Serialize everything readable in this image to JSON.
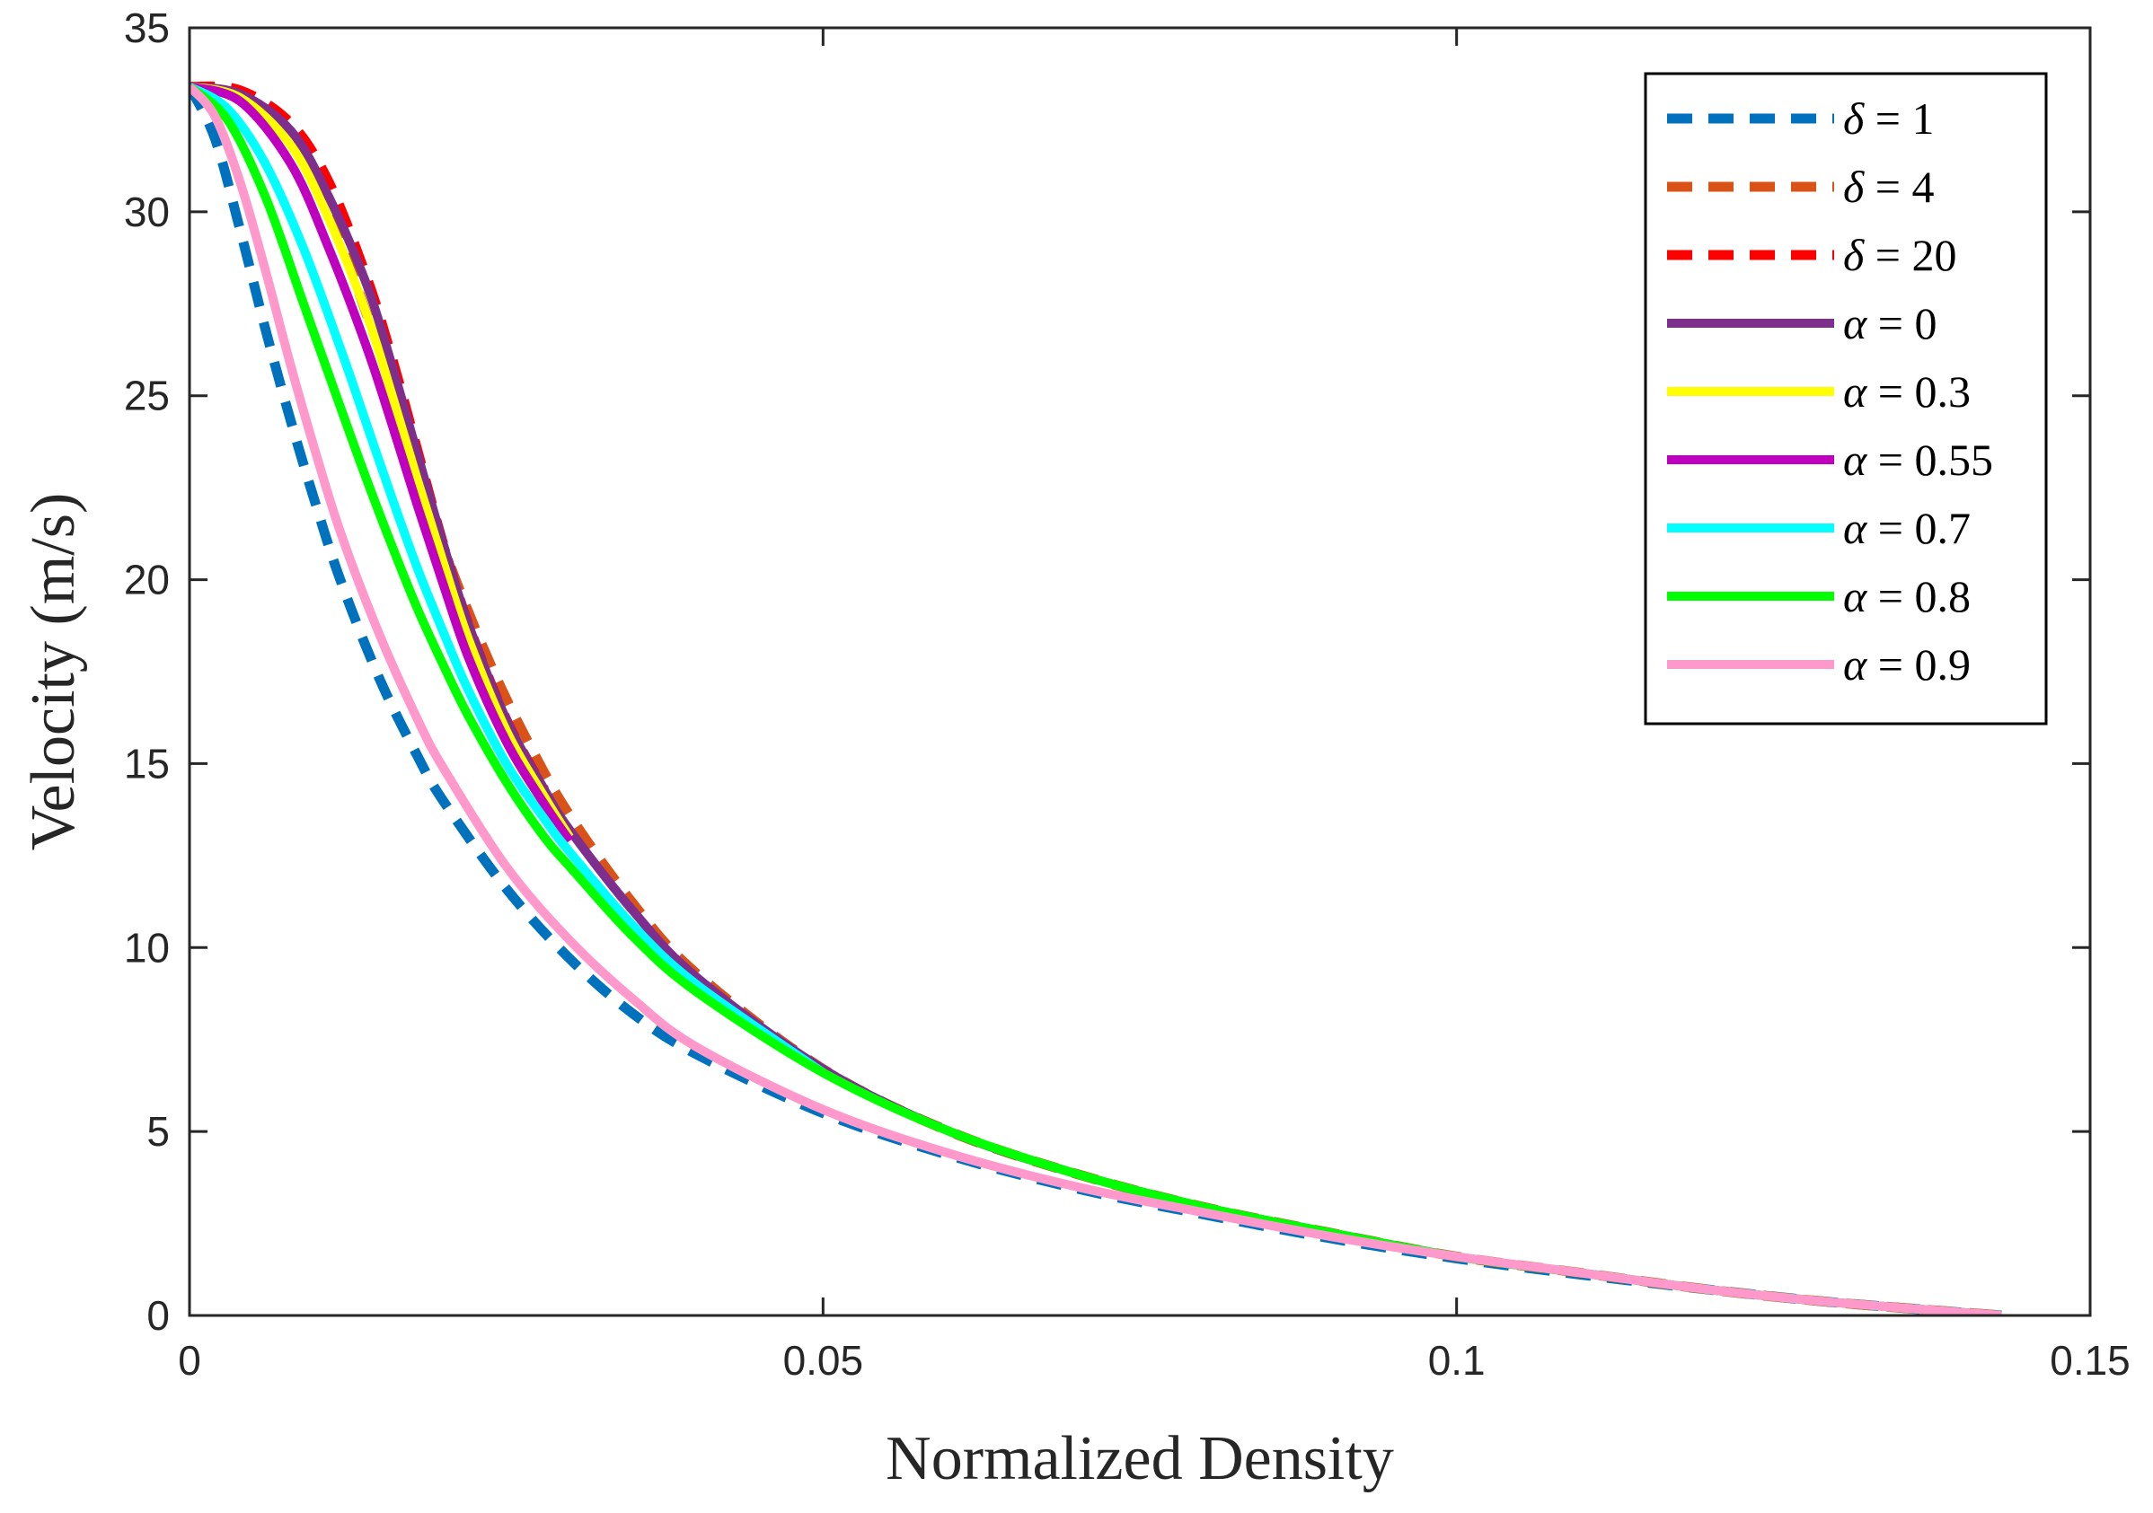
{
  "chart_data": {
    "type": "line",
    "title": "",
    "xlabel": "Normalized Density",
    "ylabel": "Velocity (m/s)",
    "xlim": [
      0,
      0.15
    ],
    "ylim": [
      0,
      35
    ],
    "xticks": [
      0,
      0.05,
      0.1,
      0.15
    ],
    "xtick_labels": [
      "0",
      "0.05",
      "0.1",
      "0.15"
    ],
    "yticks": [
      0,
      5,
      10,
      15,
      20,
      25,
      30,
      35
    ],
    "ytick_labels": [
      "0",
      "5",
      "10",
      "15",
      "20",
      "25",
      "30",
      "35"
    ],
    "grid": false,
    "legend_position": "top-right",
    "series": [
      {
        "name": "δ = 1",
        "symbol": "δ",
        "rest": " = 1",
        "color": "#0072BD",
        "dash": true,
        "x": [
          0,
          0.002,
          0.004,
          0.006,
          0.008,
          0.01,
          0.012,
          0.015,
          0.018,
          0.02,
          0.025,
          0.03,
          0.035,
          0.04,
          0.05,
          0.06,
          0.07,
          0.08,
          0.09,
          0.1,
          0.11,
          0.12,
          0.13,
          0.143
        ],
        "y": [
          33.4,
          32.0,
          29.5,
          26.8,
          24.3,
          22.0,
          19.9,
          17.3,
          15.2,
          14.0,
          11.6,
          9.7,
          8.2,
          7.1,
          5.5,
          4.35,
          3.45,
          2.75,
          2.1,
          1.55,
          1.1,
          0.7,
          0.35,
          0.0
        ]
      },
      {
        "name": "δ = 4",
        "symbol": "δ",
        "rest": " = 4",
        "color": "#D95319",
        "dash": true,
        "x": [
          0,
          0.004,
          0.008,
          0.011,
          0.014,
          0.017,
          0.019,
          0.021,
          0.024,
          0.027,
          0.03,
          0.035,
          0.04,
          0.05,
          0.06,
          0.07,
          0.08,
          0.09,
          0.1,
          0.11,
          0.12,
          0.13,
          0.143
        ],
        "y": [
          33.4,
          33.2,
          32.0,
          30.0,
          27.2,
          24.3,
          22.0,
          20.0,
          17.5,
          15.4,
          13.6,
          11.2,
          9.3,
          6.7,
          5.0,
          3.85,
          2.95,
          2.25,
          1.6,
          1.15,
          0.7,
          0.35,
          0.0
        ]
      },
      {
        "name": "δ = 20",
        "symbol": "δ",
        "rest": " = 20",
        "color": "#FF0000",
        "dash": true,
        "x": [
          0,
          0.004,
          0.008,
          0.011,
          0.014,
          0.016,
          0.018,
          0.02,
          0.022,
          0.025,
          0.028
        ],
        "y": [
          33.4,
          33.3,
          32.4,
          30.8,
          28.2,
          26.0,
          23.5,
          21.0,
          18.8,
          16.2,
          14.3
        ]
      },
      {
        "name": "α = 0",
        "symbol": "α",
        "rest": " = 0",
        "color": "#7E2F8E",
        "dash": false,
        "x": [
          0,
          0.004,
          0.008,
          0.011,
          0.014,
          0.016,
          0.018,
          0.02,
          0.022,
          0.025,
          0.028,
          0.03,
          0.035,
          0.04,
          0.05,
          0.06,
          0.07,
          0.08,
          0.09,
          0.1,
          0.11,
          0.12,
          0.13,
          0.143
        ],
        "y": [
          33.4,
          33.2,
          32.2,
          30.4,
          28.0,
          25.8,
          23.4,
          21.0,
          18.8,
          16.2,
          14.3,
          13.2,
          11.0,
          9.2,
          6.7,
          5.0,
          3.85,
          2.95,
          2.25,
          1.6,
          1.15,
          0.7,
          0.35,
          0.0
        ]
      },
      {
        "name": "α = 0.3",
        "symbol": "α",
        "rest": " = 0.3",
        "color": "#FFFF00",
        "dash": false,
        "x": [
          0,
          0.004,
          0.008,
          0.011,
          0.014,
          0.016,
          0.018,
          0.02,
          0.022,
          0.025,
          0.028,
          0.03
        ],
        "y": [
          33.4,
          33.1,
          31.8,
          29.8,
          27.2,
          25.0,
          22.7,
          20.5,
          18.4,
          15.9,
          14.1,
          13.0
        ]
      },
      {
        "name": "α = 0.55",
        "symbol": "α",
        "rest": " = 0.55",
        "color": "#BF00BF",
        "dash": false,
        "x": [
          0,
          0.004,
          0.008,
          0.011,
          0.014,
          0.016,
          0.018,
          0.02,
          0.022,
          0.025,
          0.028,
          0.03
        ],
        "y": [
          33.4,
          33.0,
          31.3,
          29.0,
          26.3,
          24.2,
          22.0,
          19.9,
          17.9,
          15.6,
          13.9,
          12.9
        ]
      },
      {
        "name": "α = 0.7",
        "symbol": "α",
        "rest": " = 0.7",
        "color": "#00FFFF",
        "dash": false,
        "x": [
          0,
          0.003,
          0.006,
          0.009,
          0.012,
          0.014,
          0.016,
          0.018,
          0.02,
          0.022,
          0.025,
          0.028,
          0.03,
          0.035,
          0.04,
          0.05
        ],
        "y": [
          33.4,
          32.8,
          31.3,
          29.0,
          26.2,
          24.2,
          22.2,
          20.3,
          18.6,
          17.0,
          15.0,
          13.5,
          12.6,
          10.6,
          9.0,
          6.6
        ]
      },
      {
        "name": "α = 0.8",
        "symbol": "α",
        "rest": " = 0.8",
        "color": "#00FF00",
        "dash": false,
        "x": [
          0,
          0.003,
          0.006,
          0.009,
          0.012,
          0.014,
          0.016,
          0.018,
          0.02,
          0.022,
          0.025,
          0.028,
          0.03,
          0.035,
          0.04,
          0.05,
          0.06,
          0.07,
          0.08,
          0.09,
          0.1,
          0.11,
          0.12,
          0.13,
          0.143
        ],
        "y": [
          33.4,
          32.5,
          30.4,
          27.5,
          24.6,
          22.7,
          20.9,
          19.2,
          17.7,
          16.3,
          14.5,
          13.0,
          12.2,
          10.3,
          8.8,
          6.6,
          5.0,
          3.85,
          2.95,
          2.25,
          1.6,
          1.15,
          0.7,
          0.35,
          0.0
        ]
      },
      {
        "name": "α = 0.9",
        "symbol": "α",
        "rest": " = 0.9",
        "color": "#FF99CC",
        "dash": false,
        "x": [
          0,
          0.002,
          0.004,
          0.006,
          0.008,
          0.01,
          0.012,
          0.015,
          0.018,
          0.02,
          0.025,
          0.03,
          0.035,
          0.04,
          0.05,
          0.06,
          0.07,
          0.08,
          0.09,
          0.1,
          0.11,
          0.12,
          0.13,
          0.143
        ],
        "y": [
          33.4,
          32.6,
          30.8,
          28.4,
          25.8,
          23.4,
          21.2,
          18.5,
          16.2,
          14.9,
          12.2,
          10.2,
          8.6,
          7.3,
          5.6,
          4.4,
          3.5,
          2.8,
          2.15,
          1.6,
          1.15,
          0.7,
          0.35,
          0.0
        ]
      }
    ]
  }
}
